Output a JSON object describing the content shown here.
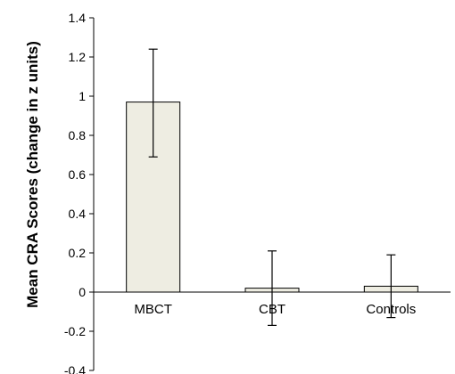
{
  "chart_data": {
    "type": "bar",
    "title": "",
    "xlabel": "",
    "ylabel": "Mean CRA Scores (change in z units)",
    "ylim": [
      -0.4,
      1.4
    ],
    "yticks": [
      1.4,
      1.2,
      1,
      0.8,
      0.6,
      0.4,
      0.2,
      0,
      -0.2,
      -0.4
    ],
    "ytick_labels": [
      "1.4",
      "1.2",
      "1",
      "0.8",
      "0.6",
      "0.4",
      "0.2",
      "0",
      "-0.2",
      "-0.4"
    ],
    "categories": [
      "MBCT",
      "CBT",
      "Controls"
    ],
    "values": [
      0.97,
      0.02,
      0.03
    ],
    "error_bars": [
      {
        "low": 0.69,
        "high": 1.24
      },
      {
        "low": -0.17,
        "high": 0.21
      },
      {
        "low": -0.13,
        "high": 0.19
      }
    ],
    "grid": false,
    "legend": "none",
    "colors": {
      "bar_fill": "#eeede2",
      "bar_stroke": "#000000",
      "axis": "#000000",
      "error_bar": "#000000"
    }
  }
}
